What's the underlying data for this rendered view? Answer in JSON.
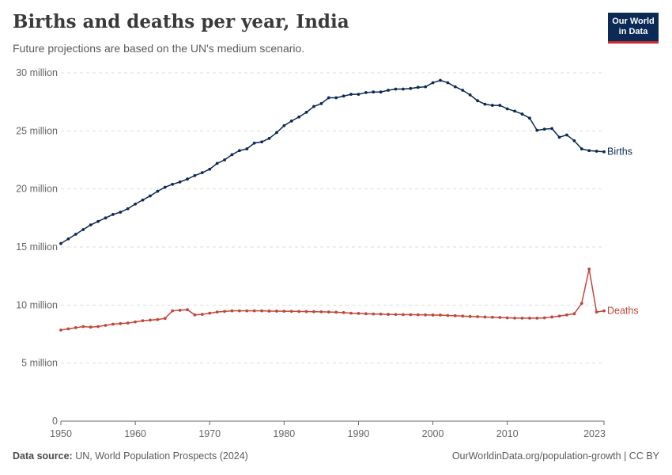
{
  "header": {
    "title": "Births and deaths per year, India",
    "subtitle": "Future projections are based on the UN's medium scenario.",
    "logo_line1": "Our World",
    "logo_line2": "in Data"
  },
  "footer": {
    "source_label": "Data source:",
    "source_text": "UN, World Population Prospects (2024)",
    "link_text": "OurWorldinData.org/population-growth | CC BY"
  },
  "colors": {
    "births": "#0b2a55",
    "deaths": "#c2473a",
    "grid": "#dddddd",
    "axis": "#666666"
  },
  "chart_data": {
    "type": "line",
    "x_start": 1950,
    "x_end": 2023,
    "xlim": [
      1950,
      2023
    ],
    "ylim": [
      0,
      30000000
    ],
    "grid": true,
    "y_ticks": [
      {
        "value": 0,
        "label": "0"
      },
      {
        "value": 5000000,
        "label": "5 million"
      },
      {
        "value": 10000000,
        "label": "10 million"
      },
      {
        "value": 15000000,
        "label": "15 million"
      },
      {
        "value": 20000000,
        "label": "20 million"
      },
      {
        "value": 25000000,
        "label": "25 million"
      },
      {
        "value": 30000000,
        "label": "30 million"
      }
    ],
    "x_ticks": [
      {
        "value": 1950,
        "label": "1950"
      },
      {
        "value": 1960,
        "label": "1960"
      },
      {
        "value": 1970,
        "label": "1970"
      },
      {
        "value": 1980,
        "label": "1980"
      },
      {
        "value": 1990,
        "label": "1990"
      },
      {
        "value": 2000,
        "label": "2000"
      },
      {
        "value": 2010,
        "label": "2010"
      },
      {
        "value": 2023,
        "label": "2023"
      }
    ],
    "series": [
      {
        "name": "Births",
        "values_millions": [
          15.3,
          15.7,
          16.1,
          16.5,
          16.9,
          17.2,
          17.5,
          17.8,
          18.0,
          18.3,
          18.7,
          19.05,
          19.4,
          19.8,
          20.15,
          20.4,
          20.6,
          20.85,
          21.15,
          21.4,
          21.7,
          22.2,
          22.5,
          22.95,
          23.3,
          23.45,
          23.95,
          24.05,
          24.35,
          24.85,
          25.45,
          25.85,
          26.2,
          26.6,
          27.1,
          27.35,
          27.85,
          27.85,
          28.0,
          28.15,
          28.15,
          28.3,
          28.35,
          28.35,
          28.5,
          28.6,
          28.6,
          28.65,
          28.75,
          28.8,
          29.15,
          29.35,
          29.15,
          28.8,
          28.5,
          28.1,
          27.6,
          27.3,
          27.2,
          27.2,
          26.9,
          26.7,
          26.45,
          26.1,
          25.05,
          25.15,
          25.2,
          24.45,
          24.65,
          24.15,
          23.45,
          23.3,
          23.25,
          23.2
        ]
      },
      {
        "name": "Deaths",
        "values_millions": [
          7.85,
          7.95,
          8.05,
          8.15,
          8.1,
          8.15,
          8.25,
          8.35,
          8.4,
          8.45,
          8.55,
          8.65,
          8.7,
          8.75,
          8.85,
          9.5,
          9.55,
          9.6,
          9.15,
          9.2,
          9.3,
          9.4,
          9.45,
          9.5,
          9.5,
          9.5,
          9.5,
          9.5,
          9.48,
          9.48,
          9.47,
          9.46,
          9.45,
          9.44,
          9.43,
          9.42,
          9.4,
          9.38,
          9.35,
          9.3,
          9.28,
          9.25,
          9.23,
          9.22,
          9.2,
          9.19,
          9.18,
          9.17,
          9.16,
          9.15,
          9.14,
          9.14,
          9.1,
          9.08,
          9.05,
          9.02,
          9.0,
          8.97,
          8.95,
          8.93,
          8.9,
          8.88,
          8.87,
          8.87,
          8.87,
          8.9,
          8.97,
          9.05,
          9.15,
          9.25,
          10.15,
          13.1,
          9.4,
          9.5
        ]
      }
    ]
  }
}
